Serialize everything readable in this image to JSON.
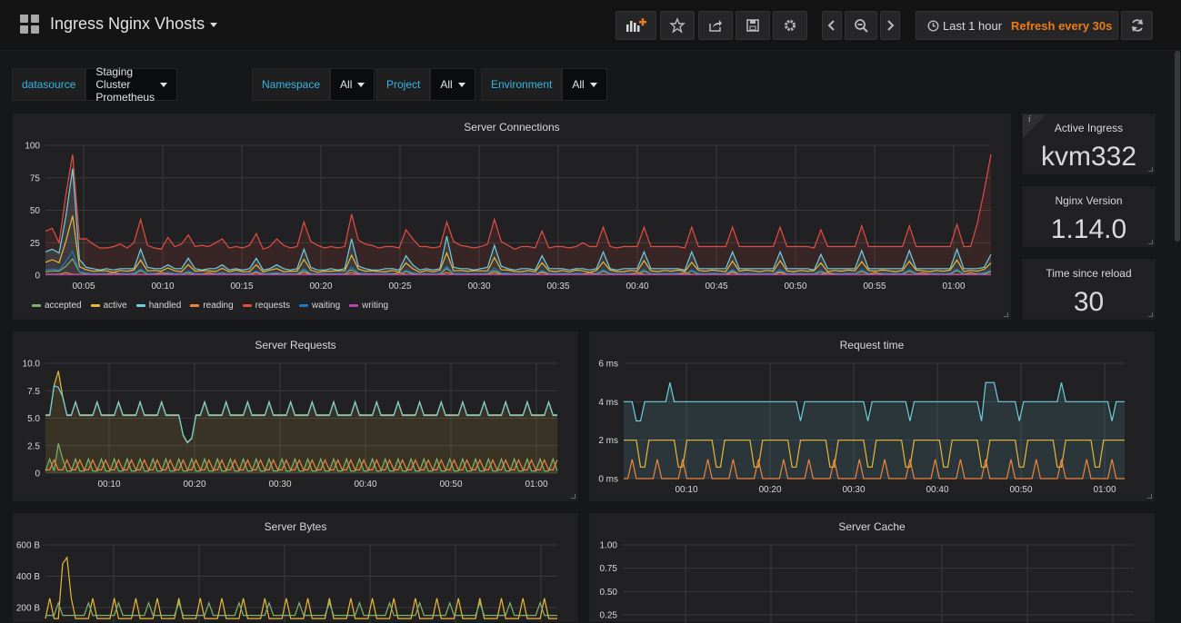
{
  "header": {
    "title": "Ingress Nginx Vhosts",
    "timepicker": {
      "range": "Last 1 hour",
      "refresh": "Refresh every 30s"
    }
  },
  "variables": [
    {
      "label": "datasource",
      "value": "Staging Cluster Prometheus"
    },
    {
      "label": "Namespace",
      "value": "All"
    },
    {
      "label": "Project",
      "value": "All"
    },
    {
      "label": "Environment",
      "value": "All"
    }
  ],
  "panels": {
    "connections": {
      "title": "Server Connections"
    },
    "requests": {
      "title": "Server Requests"
    },
    "request_time": {
      "title": "Request time"
    },
    "bytes": {
      "title": "Server Bytes"
    },
    "cache": {
      "title": "Server Cache"
    }
  },
  "stats": [
    {
      "title": "Active Ingress",
      "value": "kvm332"
    },
    {
      "title": "Nginx Version",
      "value": "1.14.0"
    },
    {
      "title": "Time since reload",
      "value": "30"
    }
  ],
  "colors": {
    "accepted": "#7eb26d",
    "active": "#eab839",
    "handled": "#6ed0e0",
    "reading": "#ef843c",
    "requests": "#e24d42",
    "waiting": "#1f78c1",
    "writing": "#ba43a9",
    "accent": "#33b5e5",
    "refresh": "#eb7b18"
  },
  "chart_data": [
    {
      "type": "line",
      "title": "Server Connections",
      "ylim": [
        0,
        100
      ],
      "y_ticks": [
        "0",
        "25",
        "50",
        "75",
        "100"
      ],
      "x_ticks": [
        "00:05",
        "00:10",
        "00:15",
        "00:20",
        "00:25",
        "00:30",
        "00:35",
        "00:40",
        "00:45",
        "00:50",
        "00:55",
        "01:00"
      ],
      "legend": [
        "accepted",
        "active",
        "handled",
        "reading",
        "requests",
        "waiting",
        "writing"
      ],
      "series": [
        {
          "name": "requests",
          "values": [
            34,
            36,
            25,
            62,
            93,
            28,
            28,
            24,
            21,
            21,
            22,
            24,
            21,
            25,
            43,
            23,
            21,
            20,
            29,
            22,
            24,
            31,
            22,
            23,
            22,
            25,
            28,
            21,
            22,
            21,
            23,
            32,
            20,
            22,
            28,
            23,
            21,
            22,
            41,
            26,
            23,
            21,
            22,
            21,
            22,
            47,
            27,
            24,
            23,
            21,
            22,
            22,
            21,
            35,
            28,
            22,
            22,
            21,
            22,
            41,
            26,
            23,
            22,
            21,
            22,
            24,
            43,
            26,
            23,
            20,
            22,
            22,
            21,
            34,
            21,
            22,
            22,
            21,
            22,
            25,
            22,
            22,
            37,
            22,
            21,
            22,
            22,
            22,
            37,
            22,
            22,
            22,
            22,
            22,
            21,
            37,
            22,
            22,
            22,
            22,
            22,
            37,
            22,
            22,
            22,
            22,
            22,
            22,
            37,
            22,
            22,
            22,
            22,
            21,
            35,
            22,
            22,
            22,
            22,
            22,
            38,
            22,
            22,
            22,
            22,
            22,
            22,
            38,
            22,
            22,
            22,
            22,
            22,
            22,
            39,
            22,
            22,
            40,
            65,
            93
          ]
        },
        {
          "name": "handled",
          "values": [
            18,
            20,
            17,
            45,
            82,
            12,
            6,
            5,
            4,
            5,
            4,
            5,
            5,
            5,
            20,
            6,
            5,
            5,
            8,
            5,
            5,
            13,
            5,
            4,
            5,
            5,
            8,
            4,
            5,
            4,
            5,
            13,
            4,
            5,
            8,
            5,
            4,
            5,
            20,
            6,
            4,
            4,
            5,
            4,
            5,
            28,
            7,
            5,
            4,
            4,
            5,
            5,
            4,
            15,
            8,
            4,
            5,
            4,
            5,
            30,
            6,
            5,
            5,
            4,
            5,
            6,
            23,
            7,
            5,
            4,
            5,
            5,
            4,
            15,
            5,
            5,
            5,
            4,
            5,
            5,
            4,
            5,
            18,
            5,
            4,
            5,
            5,
            5,
            18,
            5,
            5,
            5,
            5,
            5,
            4,
            18,
            5,
            5,
            5,
            5,
            5,
            18,
            5,
            5,
            5,
            5,
            5,
            5,
            18,
            5,
            5,
            5,
            5,
            4,
            16,
            5,
            5,
            5,
            5,
            5,
            19,
            5,
            5,
            5,
            5,
            5,
            5,
            19,
            5,
            5,
            5,
            5,
            5,
            5,
            20,
            5,
            5,
            5,
            6,
            16
          ]
        }
      ]
    },
    {
      "type": "line",
      "title": "Server Requests",
      "ylim": [
        0,
        10
      ],
      "y_ticks": [
        "0",
        "2.5",
        "5.0",
        "7.5",
        "10.0"
      ],
      "x_ticks": [
        "00:10",
        "00:20",
        "00:30",
        "00:40",
        "00:50",
        "01:00"
      ]
    },
    {
      "type": "line",
      "title": "Request time",
      "ylim": [
        0,
        6
      ],
      "y_ticks": [
        "0 ms",
        "2 ms",
        "4 ms",
        "6 ms"
      ],
      "x_ticks": [
        "00:10",
        "00:20",
        "00:30",
        "00:40",
        "00:50",
        "01:00"
      ]
    },
    {
      "type": "line",
      "title": "Server Bytes",
      "y_ticks": [
        "200 B",
        "400 B",
        "600 B"
      ]
    },
    {
      "type": "line",
      "title": "Server Cache",
      "y_ticks": [
        "0.25",
        "0.50",
        "0.75",
        "1.00"
      ]
    }
  ]
}
